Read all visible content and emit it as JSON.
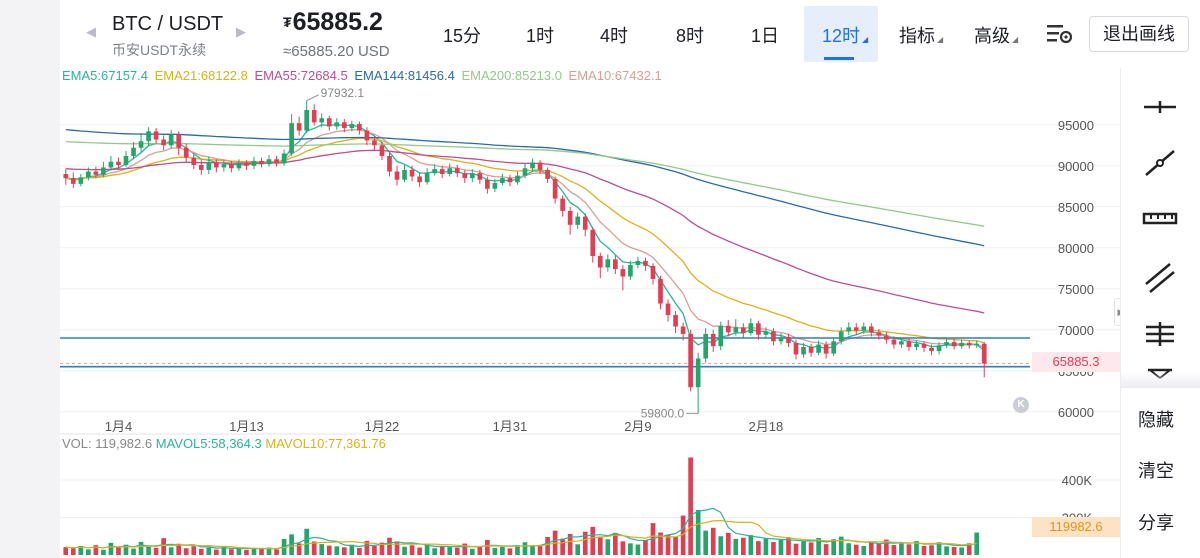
{
  "header": {
    "pair": "BTC / USDT",
    "contract": "币安USDT永续",
    "price_currency": "₮",
    "price": "65885.2",
    "usd_price": "≈65885.20 USD",
    "prev_arrow": "◀",
    "next_arrow": "▶",
    "timeframes": [
      "15分",
      "1时",
      "4时",
      "8时",
      "1日"
    ],
    "active_timeframe": "12时",
    "indicator_label": "指标",
    "advanced_label": "高级",
    "exit_label": "退出画线"
  },
  "ema_legend": [
    {
      "text": "EMA5:67157.4",
      "color": "#2bb39b"
    },
    {
      "text": "EMA21:68122.8",
      "color": "#d9b11e"
    },
    {
      "text": "EMA55:72684.5",
      "color": "#b84f93"
    },
    {
      "text": "EMA144:81456.4",
      "color": "#2b6aa6"
    },
    {
      "text": "EMA200:85213.0",
      "color": "#93c98a"
    },
    {
      "text": "EMA10:67432.1",
      "color": "#d89e97"
    }
  ],
  "volume_legend": [
    {
      "text": "VOL: 119,982.6",
      "color": "#888888"
    },
    {
      "text": "MAVOL5:58,364.3",
      "color": "#2bb39b"
    },
    {
      "text": "MAVOL10:77,361.76",
      "color": "#d9b11e"
    }
  ],
  "price_axis": [
    "95000",
    "90000",
    "85000",
    "80000",
    "75000",
    "70000",
    "65000",
    "60000"
  ],
  "volume_axis": [
    "400K",
    "200K"
  ],
  "date_labels": [
    "1月4",
    "1月13",
    "1月22",
    "1月31",
    "2月9",
    "2月18"
  ],
  "annotations": {
    "high": "97932.1",
    "low": "59800.0"
  },
  "current_price_tag": "65885.3",
  "current_volume_tag": "119982.6",
  "k_badge": "K",
  "sidebar": {
    "tools": [
      "horizontal-line-icon",
      "trend-line-icon",
      "ruler-icon",
      "parallel-lines-icon",
      "fib-levels-icon",
      "measure-icon"
    ],
    "hide_label": "隐藏",
    "clear_label": "清空",
    "share_label": "分享"
  },
  "chart_data": {
    "type": "candlestick",
    "interval": "12时",
    "ylim": [
      59000,
      99000
    ],
    "horizontal_lines": [
      69000,
      65500
    ],
    "candles": [
      {
        "o": 89000,
        "c": 88500,
        "h": 89600,
        "l": 87700
      },
      {
        "o": 88500,
        "c": 87800,
        "h": 89200,
        "l": 87300
      },
      {
        "o": 87800,
        "c": 88600,
        "h": 89000,
        "l": 87500
      },
      {
        "o": 88600,
        "c": 89300,
        "h": 89800,
        "l": 88200
      },
      {
        "o": 89300,
        "c": 88900,
        "h": 89900,
        "l": 88500
      },
      {
        "o": 88900,
        "c": 89800,
        "h": 90500,
        "l": 88600
      },
      {
        "o": 89800,
        "c": 90500,
        "h": 91200,
        "l": 89400
      },
      {
        "o": 90500,
        "c": 90100,
        "h": 91000,
        "l": 89500
      },
      {
        "o": 90100,
        "c": 91200,
        "h": 91800,
        "l": 89900
      },
      {
        "o": 91200,
        "c": 92200,
        "h": 92900,
        "l": 90800
      },
      {
        "o": 92200,
        "c": 93000,
        "h": 94000,
        "l": 91700
      },
      {
        "o": 93000,
        "c": 94200,
        "h": 94700,
        "l": 92400
      },
      {
        "o": 94200,
        "c": 93200,
        "h": 94600,
        "l": 92600
      },
      {
        "o": 93200,
        "c": 92500,
        "h": 93700,
        "l": 91900
      },
      {
        "o": 92500,
        "c": 93800,
        "h": 94400,
        "l": 92100
      },
      {
        "o": 93800,
        "c": 92200,
        "h": 94200,
        "l": 91300
      },
      {
        "o": 92200,
        "c": 91000,
        "h": 92700,
        "l": 90500
      },
      {
        "o": 91000,
        "c": 90100,
        "h": 91400,
        "l": 89600
      },
      {
        "o": 90100,
        "c": 89500,
        "h": 90800,
        "l": 88900
      },
      {
        "o": 89500,
        "c": 90400,
        "h": 91100,
        "l": 89000
      },
      {
        "o": 90400,
        "c": 89800,
        "h": 90800,
        "l": 89200
      },
      {
        "o": 89800,
        "c": 90200,
        "h": 90700,
        "l": 89300
      },
      {
        "o": 90200,
        "c": 89700,
        "h": 90600,
        "l": 89200
      },
      {
        "o": 89700,
        "c": 90300,
        "h": 90800,
        "l": 89400
      },
      {
        "o": 90300,
        "c": 90000,
        "h": 90700,
        "l": 89500
      },
      {
        "o": 90000,
        "c": 90600,
        "h": 91100,
        "l": 89600
      },
      {
        "o": 90600,
        "c": 90200,
        "h": 91000,
        "l": 89800
      },
      {
        "o": 90200,
        "c": 90800,
        "h": 91300,
        "l": 89900
      },
      {
        "o": 90800,
        "c": 90300,
        "h": 91200,
        "l": 89900
      },
      {
        "o": 90300,
        "c": 91500,
        "h": 92000,
        "l": 90000
      },
      {
        "o": 91500,
        "c": 95200,
        "h": 96300,
        "l": 91200
      },
      {
        "o": 95200,
        "c": 94300,
        "h": 96000,
        "l": 93700
      },
      {
        "o": 94300,
        "c": 96800,
        "h": 97932,
        "l": 94000
      },
      {
        "o": 96800,
        "c": 95300,
        "h": 97500,
        "l": 94900
      },
      {
        "o": 95300,
        "c": 95800,
        "h": 96400,
        "l": 94700
      },
      {
        "o": 95800,
        "c": 94800,
        "h": 96100,
        "l": 94300
      },
      {
        "o": 94800,
        "c": 95300,
        "h": 95800,
        "l": 94400
      },
      {
        "o": 95300,
        "c": 94600,
        "h": 95700,
        "l": 94100
      },
      {
        "o": 94600,
        "c": 95100,
        "h": 95500,
        "l": 94200
      },
      {
        "o": 95100,
        "c": 94300,
        "h": 95400,
        "l": 93800
      },
      {
        "o": 94300,
        "c": 93100,
        "h": 94700,
        "l": 92500
      },
      {
        "o": 93100,
        "c": 92500,
        "h": 93600,
        "l": 91800
      },
      {
        "o": 92500,
        "c": 91200,
        "h": 92900,
        "l": 90700
      },
      {
        "o": 91200,
        "c": 89300,
        "h": 91600,
        "l": 88700
      },
      {
        "o": 89300,
        "c": 88300,
        "h": 90000,
        "l": 87600
      },
      {
        "o": 88300,
        "c": 89500,
        "h": 90100,
        "l": 88000
      },
      {
        "o": 89500,
        "c": 88700,
        "h": 90000,
        "l": 88100
      },
      {
        "o": 88700,
        "c": 88000,
        "h": 89200,
        "l": 87400
      },
      {
        "o": 88000,
        "c": 89100,
        "h": 89700,
        "l": 87700
      },
      {
        "o": 89100,
        "c": 89600,
        "h": 90200,
        "l": 88800
      },
      {
        "o": 89600,
        "c": 89000,
        "h": 90000,
        "l": 88500
      },
      {
        "o": 89000,
        "c": 89700,
        "h": 90300,
        "l": 88700
      },
      {
        "o": 89700,
        "c": 89100,
        "h": 90100,
        "l": 88600
      },
      {
        "o": 89100,
        "c": 88500,
        "h": 89500,
        "l": 87900
      },
      {
        "o": 88500,
        "c": 89100,
        "h": 89600,
        "l": 88000
      },
      {
        "o": 89100,
        "c": 88300,
        "h": 89500,
        "l": 87800
      },
      {
        "o": 88300,
        "c": 87200,
        "h": 88700,
        "l": 86600
      },
      {
        "o": 87200,
        "c": 87900,
        "h": 88400,
        "l": 86800
      },
      {
        "o": 87900,
        "c": 88500,
        "h": 89000,
        "l": 87600
      },
      {
        "o": 88500,
        "c": 88000,
        "h": 88900,
        "l": 87500
      },
      {
        "o": 88000,
        "c": 88800,
        "h": 89300,
        "l": 87700
      },
      {
        "o": 88800,
        "c": 89700,
        "h": 90300,
        "l": 88500
      },
      {
        "o": 89700,
        "c": 90400,
        "h": 90900,
        "l": 89300
      },
      {
        "o": 90400,
        "c": 89500,
        "h": 90700,
        "l": 89000
      },
      {
        "o": 89500,
        "c": 88400,
        "h": 89800,
        "l": 87900
      },
      {
        "o": 88400,
        "c": 86000,
        "h": 88700,
        "l": 85400
      },
      {
        "o": 86000,
        "c": 84500,
        "h": 86400,
        "l": 83800
      },
      {
        "o": 84500,
        "c": 82800,
        "h": 85000,
        "l": 81600
      },
      {
        "o": 82800,
        "c": 83800,
        "h": 84300,
        "l": 82300
      },
      {
        "o": 83800,
        "c": 82200,
        "h": 84200,
        "l": 81400
      },
      {
        "o": 82200,
        "c": 79000,
        "h": 82500,
        "l": 78200
      },
      {
        "o": 79000,
        "c": 77600,
        "h": 79400,
        "l": 76300
      },
      {
        "o": 77600,
        "c": 78600,
        "h": 79200,
        "l": 77100
      },
      {
        "o": 78600,
        "c": 77400,
        "h": 79100,
        "l": 76800
      },
      {
        "o": 77400,
        "c": 76500,
        "h": 77900,
        "l": 74800
      },
      {
        "o": 76500,
        "c": 77900,
        "h": 78400,
        "l": 76100
      },
      {
        "o": 77900,
        "c": 78400,
        "h": 78900,
        "l": 77500
      },
      {
        "o": 78400,
        "c": 77800,
        "h": 78800,
        "l": 77200
      },
      {
        "o": 77800,
        "c": 76200,
        "h": 78100,
        "l": 75500
      },
      {
        "o": 76200,
        "c": 73200,
        "h": 76600,
        "l": 72500
      },
      {
        "o": 73200,
        "c": 71800,
        "h": 73700,
        "l": 71000
      },
      {
        "o": 71800,
        "c": 70400,
        "h": 72300,
        "l": 69600
      },
      {
        "o": 70400,
        "c": 69500,
        "h": 70900,
        "l": 68700
      },
      {
        "o": 69500,
        "c": 63000,
        "h": 70000,
        "l": 62500
      },
      {
        "o": 63000,
        "c": 66500,
        "h": 67200,
        "l": 59800
      },
      {
        "o": 66500,
        "c": 69500,
        "h": 70200,
        "l": 66000
      },
      {
        "o": 69500,
        "c": 68000,
        "h": 70000,
        "l": 67300
      },
      {
        "o": 68000,
        "c": 70500,
        "h": 71000,
        "l": 67500
      },
      {
        "o": 70500,
        "c": 69700,
        "h": 71200,
        "l": 69200
      },
      {
        "o": 69700,
        "c": 70300,
        "h": 71300,
        "l": 69300
      },
      {
        "o": 70300,
        "c": 69600,
        "h": 70800,
        "l": 69000
      },
      {
        "o": 69600,
        "c": 70800,
        "h": 71400,
        "l": 69300
      },
      {
        "o": 70800,
        "c": 69400,
        "h": 71100,
        "l": 68800
      },
      {
        "o": 69400,
        "c": 69800,
        "h": 70300,
        "l": 68900
      },
      {
        "o": 69800,
        "c": 68600,
        "h": 70200,
        "l": 68100
      },
      {
        "o": 68600,
        "c": 69100,
        "h": 69600,
        "l": 68200
      },
      {
        "o": 69100,
        "c": 68400,
        "h": 69500,
        "l": 67900
      },
      {
        "o": 68400,
        "c": 67000,
        "h": 68800,
        "l": 66400
      },
      {
        "o": 67000,
        "c": 67900,
        "h": 68400,
        "l": 66600
      },
      {
        "o": 67900,
        "c": 67200,
        "h": 68300,
        "l": 66700
      },
      {
        "o": 67200,
        "c": 68200,
        "h": 68700,
        "l": 66900
      },
      {
        "o": 68200,
        "c": 67100,
        "h": 68600,
        "l": 66500
      },
      {
        "o": 67100,
        "c": 68600,
        "h": 69100,
        "l": 66800
      },
      {
        "o": 68600,
        "c": 69800,
        "h": 70300,
        "l": 68200
      },
      {
        "o": 69800,
        "c": 70300,
        "h": 70900,
        "l": 69400
      },
      {
        "o": 70300,
        "c": 69900,
        "h": 70800,
        "l": 69400
      },
      {
        "o": 69900,
        "c": 70400,
        "h": 70900,
        "l": 69500
      },
      {
        "o": 70400,
        "c": 69700,
        "h": 70800,
        "l": 69200
      },
      {
        "o": 69700,
        "c": 69300,
        "h": 70100,
        "l": 68800
      },
      {
        "o": 69300,
        "c": 68800,
        "h": 69700,
        "l": 68300
      },
      {
        "o": 68800,
        "c": 68200,
        "h": 69200,
        "l": 67700
      },
      {
        "o": 68200,
        "c": 68600,
        "h": 69000,
        "l": 67800
      },
      {
        "o": 68600,
        "c": 67900,
        "h": 68900,
        "l": 67400
      },
      {
        "o": 67900,
        "c": 68300,
        "h": 68700,
        "l": 67500
      },
      {
        "o": 68300,
        "c": 67800,
        "h": 68600,
        "l": 67300
      },
      {
        "o": 67800,
        "c": 67400,
        "h": 68200,
        "l": 66900
      },
      {
        "o": 67400,
        "c": 68100,
        "h": 68500,
        "l": 67000
      },
      {
        "o": 68100,
        "c": 68500,
        "h": 68900,
        "l": 67800
      },
      {
        "o": 68500,
        "c": 68000,
        "h": 68900,
        "l": 67600
      },
      {
        "o": 68000,
        "c": 68400,
        "h": 68800,
        "l": 67700
      },
      {
        "o": 68400,
        "c": 68100,
        "h": 68700,
        "l": 67700
      },
      {
        "o": 68100,
        "c": 68300,
        "h": 68700,
        "l": 67800
      },
      {
        "o": 68300,
        "c": 65885,
        "h": 68500,
        "l": 64200
      }
    ],
    "volumes": [
      42000,
      35000,
      48000,
      30000,
      52000,
      28000,
      65000,
      40000,
      55000,
      34000,
      70000,
      45000,
      38000,
      90000,
      41000,
      60000,
      36000,
      47000,
      33000,
      39000,
      29000,
      44000,
      31000,
      37000,
      27000,
      36000,
      32000,
      40000,
      30000,
      85000,
      110000,
      62000,
      140000,
      72000,
      58000,
      50000,
      46000,
      41000,
      55000,
      38000,
      75000,
      48000,
      66000,
      92000,
      70000,
      44000,
      52000,
      40000,
      58000,
      36000,
      47000,
      42000,
      39000,
      61000,
      33000,
      45000,
      80000,
      38000,
      43000,
      35000,
      51000,
      68000,
      46000,
      54000,
      96000,
      130000,
      88000,
      112000,
      57000,
      124000,
      150000,
      99000,
      84000,
      118000,
      73000,
      62000,
      56000,
      78000,
      170000,
      120000,
      108000,
      96000,
      210000,
      520000,
      240000,
      130000,
      145000,
      100000,
      118000,
      86000,
      92000,
      106000,
      74000,
      88000,
      69000,
      80000,
      95000,
      60000,
      72000,
      67000,
      91000,
      58000,
      84000,
      98000,
      63000,
      55000,
      48000,
      71000,
      64000,
      82000,
      53000,
      61000,
      57000,
      74000,
      49000,
      52000,
      68000,
      46000,
      43000,
      40000,
      62000,
      119983
    ],
    "ema": [
      {
        "name": "EMA5",
        "color": "#2bb39b"
      },
      {
        "name": "EMA10",
        "color": "#d89e97"
      },
      {
        "name": "EMA21",
        "color": "#d9b11e"
      },
      {
        "name": "EMA55",
        "color": "#b84f93"
      },
      {
        "name": "EMA144",
        "color": "#2b6aa6"
      },
      {
        "name": "EMA200",
        "color": "#93c98a"
      }
    ]
  }
}
